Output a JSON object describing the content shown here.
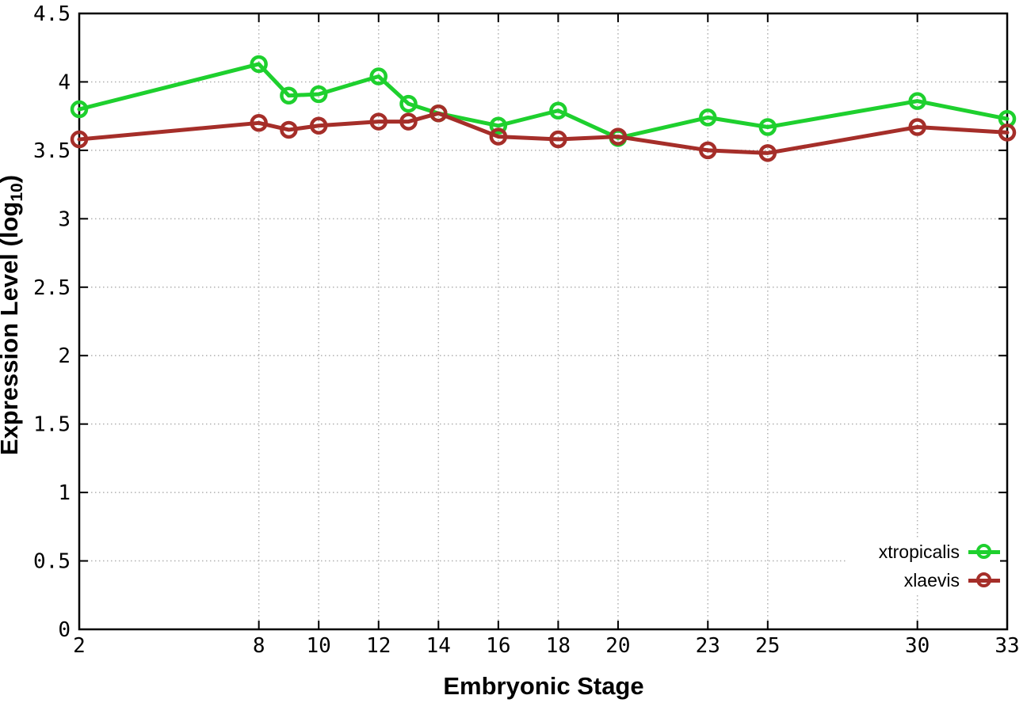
{
  "chart_data": {
    "type": "line",
    "title": "",
    "xlabel": "Embryonic Stage",
    "ylabel_main": "Expression Level (log",
    "ylabel_sub": "10",
    "ylabel_end": ")",
    "xlim": [
      2,
      33
    ],
    "ylim": [
      0,
      4.5
    ],
    "x_ticks": [
      2,
      8,
      10,
      12,
      14,
      16,
      18,
      20,
      23,
      25,
      30,
      33
    ],
    "x_tick_labels": [
      "2",
      "8",
      "10",
      "12",
      "14",
      "16",
      "18",
      "20",
      "23",
      "25",
      "30",
      "33"
    ],
    "y_ticks": [
      0,
      0.5,
      1,
      1.5,
      2,
      2.5,
      3,
      3.5,
      4,
      4.5
    ],
    "y_tick_labels": [
      "0",
      "0.5",
      "1",
      "1.5",
      "2",
      "2.5",
      "3",
      "3.5",
      "4",
      "4.5"
    ],
    "grid": true,
    "grid_style": "dotted",
    "legend_position": "bottom-right-inside",
    "marker": "open-circle",
    "x": [
      2,
      8,
      9,
      10,
      12,
      13,
      14,
      16,
      18,
      20,
      23,
      25,
      30,
      33
    ],
    "series": [
      {
        "name": "xtropicalis",
        "color": "#1ed02e",
        "values": [
          3.8,
          4.13,
          3.9,
          3.91,
          4.04,
          3.84,
          3.77,
          3.68,
          3.79,
          3.59,
          3.74,
          3.67,
          3.86,
          3.73
        ]
      },
      {
        "name": "xlaevis",
        "color": "#a52e29",
        "values": [
          3.58,
          3.7,
          3.65,
          3.68,
          3.71,
          3.71,
          3.77,
          3.6,
          3.58,
          3.6,
          3.5,
          3.48,
          3.67,
          3.63
        ]
      }
    ],
    "colors": {
      "axis": "#000000",
      "grid": "#b0b0b0",
      "background": "#ffffff",
      "text": "#000000"
    }
  }
}
